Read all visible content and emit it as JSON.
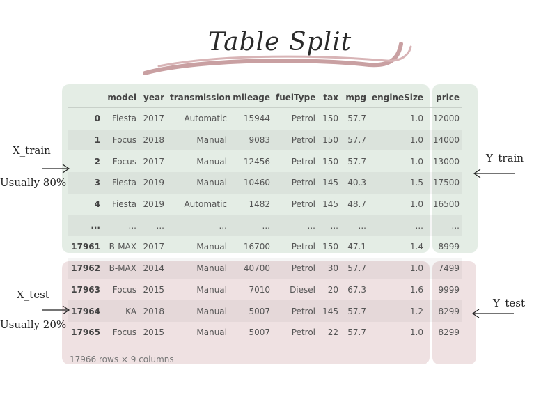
{
  "title": "Table Split",
  "table": {
    "columns": [
      "",
      "model",
      "year",
      "transmission",
      "mileage",
      "fuelType",
      "tax",
      "mpg",
      "engineSize",
      "price"
    ],
    "rows": [
      [
        "0",
        "Fiesta",
        "2017",
        "Automatic",
        "15944",
        "Petrol",
        "150",
        "57.7",
        "1.0",
        "12000"
      ],
      [
        "1",
        "Focus",
        "2018",
        "Manual",
        "9083",
        "Petrol",
        "150",
        "57.7",
        "1.0",
        "14000"
      ],
      [
        "2",
        "Focus",
        "2017",
        "Manual",
        "12456",
        "Petrol",
        "150",
        "57.7",
        "1.0",
        "13000"
      ],
      [
        "3",
        "Fiesta",
        "2019",
        "Manual",
        "10460",
        "Petrol",
        "145",
        "40.3",
        "1.5",
        "17500"
      ],
      [
        "4",
        "Fiesta",
        "2019",
        "Automatic",
        "1482",
        "Petrol",
        "145",
        "48.7",
        "1.0",
        "16500"
      ],
      [
        "...",
        "...",
        "...",
        "...",
        "...",
        "...",
        "...",
        "...",
        "...",
        "..."
      ],
      [
        "17961",
        "B-MAX",
        "2017",
        "Manual",
        "16700",
        "Petrol",
        "150",
        "47.1",
        "1.4",
        "8999"
      ],
      [
        "17962",
        "B-MAX",
        "2014",
        "Manual",
        "40700",
        "Petrol",
        "30",
        "57.7",
        "1.0",
        "7499"
      ],
      [
        "17963",
        "Focus",
        "2015",
        "Manual",
        "7010",
        "Diesel",
        "20",
        "67.3",
        "1.6",
        "9999"
      ],
      [
        "17964",
        "KA",
        "2018",
        "Manual",
        "5007",
        "Petrol",
        "145",
        "57.7",
        "1.2",
        "8299"
      ],
      [
        "17965",
        "Focus",
        "2015",
        "Manual",
        "5007",
        "Petrol",
        "22",
        "57.7",
        "1.0",
        "8299"
      ]
    ],
    "footer": "17966 rows × 9 columns"
  },
  "labels": {
    "x_train": "X_train",
    "x_train_note": "Usually 80%",
    "y_train": "Y_train",
    "x_test": "X_test",
    "x_test_note": "Usually 20%",
    "y_test": "Y_test"
  },
  "colors": {
    "train_region": "#e4ede5",
    "test_region": "#efe1e2",
    "swoosh": "#c9a0a2"
  }
}
